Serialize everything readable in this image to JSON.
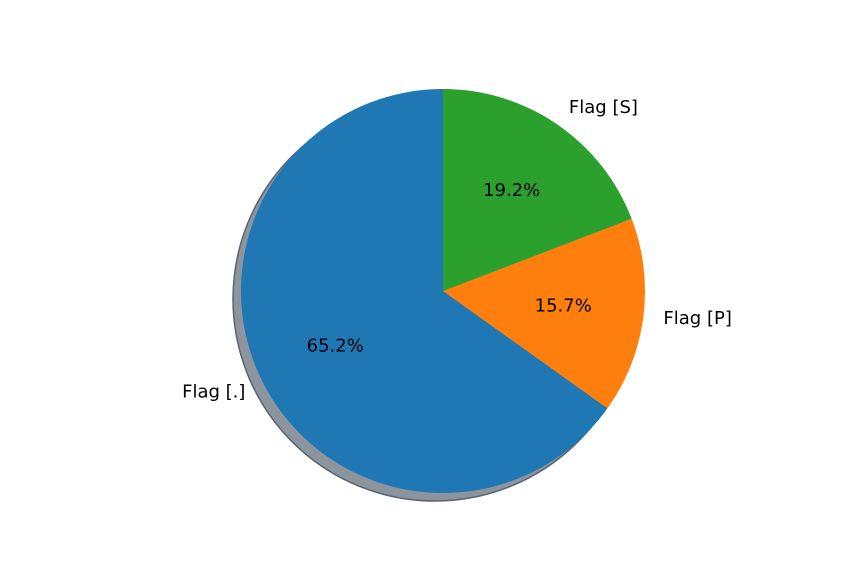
{
  "chart_data": {
    "type": "pie",
    "title": "",
    "shadow": true,
    "startangle": 90,
    "direction": "counterclockwise",
    "slices": [
      {
        "label": "Flag [.]",
        "value": 65.2,
        "pct_label": "65.2%",
        "color": "#1f77b4"
      },
      {
        "label": "Flag [P]",
        "value": 15.7,
        "pct_label": "15.7%",
        "color": "#ff7f0e"
      },
      {
        "label": "Flag [S]",
        "value": 19.2,
        "pct_label": "19.2%",
        "color": "#2ca02c"
      }
    ],
    "shadow_color": "#808a94"
  }
}
